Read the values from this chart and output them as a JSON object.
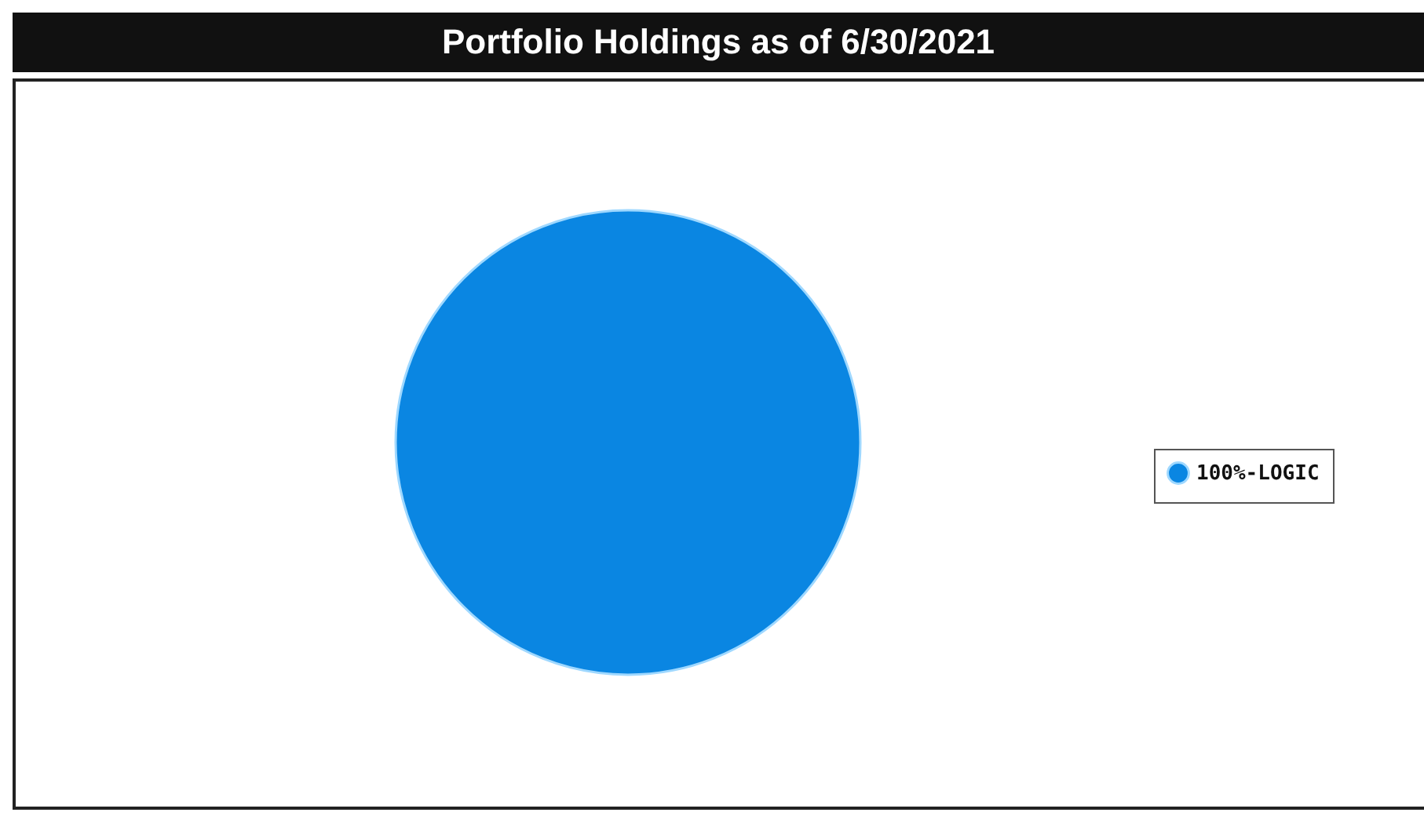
{
  "chart_data": {
    "type": "pie",
    "title": "Portfolio Holdings as of 6/30/2021",
    "categories": [
      "100%-LOGIC"
    ],
    "values": [
      100
    ],
    "colors": [
      "#0a86e2"
    ],
    "legend": "right"
  }
}
